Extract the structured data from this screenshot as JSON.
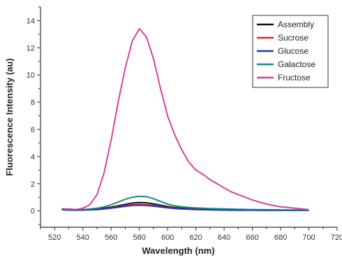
{
  "chart_data": {
    "type": "line",
    "xlabel": "Wavelength (nm)",
    "ylabel": "Fluorescence Intensity (au)",
    "xlim": [
      510,
      720
    ],
    "ylim": [
      -1.2,
      15
    ],
    "x_ticks": [
      520,
      540,
      560,
      580,
      600,
      620,
      640,
      660,
      680,
      700,
      720
    ],
    "y_ticks": [
      0,
      2,
      4,
      6,
      8,
      10,
      12,
      14
    ],
    "grid": false,
    "legend_position": "top-right",
    "series": [
      {
        "name": "Assembly",
        "color": "#111111",
        "x": [
          525,
          530,
          535,
          540,
          545,
          550,
          555,
          560,
          565,
          570,
          575,
          580,
          585,
          590,
          595,
          600,
          605,
          610,
          615,
          620,
          625,
          630,
          640,
          650,
          660,
          670,
          680,
          690,
          700
        ],
        "y": [
          0.15,
          0.12,
          0.1,
          0.1,
          0.12,
          0.15,
          0.2,
          0.28,
          0.38,
          0.48,
          0.58,
          0.62,
          0.6,
          0.52,
          0.42,
          0.32,
          0.25,
          0.2,
          0.16,
          0.14,
          0.12,
          0.1,
          0.08,
          0.08,
          0.07,
          0.06,
          0.06,
          0.05,
          0.05
        ]
      },
      {
        "name": "Sucrose",
        "color": "#e8251f",
        "x": [
          525,
          530,
          535,
          540,
          545,
          550,
          555,
          560,
          565,
          570,
          575,
          580,
          585,
          590,
          595,
          600,
          605,
          610,
          615,
          620,
          625,
          630,
          640,
          650,
          660,
          670,
          680,
          690,
          700
        ],
        "y": [
          0.1,
          0.08,
          0.07,
          0.07,
          0.09,
          0.12,
          0.16,
          0.22,
          0.3,
          0.38,
          0.45,
          0.48,
          0.46,
          0.4,
          0.33,
          0.26,
          0.2,
          0.16,
          0.13,
          0.11,
          0.1,
          0.09,
          0.07,
          0.06,
          0.06,
          0.05,
          0.05,
          0.04,
          0.04
        ]
      },
      {
        "name": "Glucose",
        "color": "#2434b8",
        "x": [
          525,
          530,
          535,
          540,
          545,
          550,
          555,
          560,
          565,
          570,
          575,
          580,
          585,
          590,
          595,
          600,
          605,
          610,
          615,
          620,
          625,
          630,
          640,
          650,
          660,
          670,
          680,
          690,
          700
        ],
        "y": [
          0.08,
          0.06,
          0.05,
          0.06,
          0.08,
          0.1,
          0.14,
          0.2,
          0.27,
          0.34,
          0.4,
          0.42,
          0.4,
          0.35,
          0.29,
          0.23,
          0.18,
          0.14,
          0.12,
          0.1,
          0.09,
          0.08,
          0.06,
          0.05,
          0.05,
          0.04,
          0.04,
          0.04,
          0.03
        ]
      },
      {
        "name": "Galactose",
        "color": "#148a7e",
        "x": [
          525,
          530,
          535,
          540,
          545,
          550,
          555,
          560,
          565,
          570,
          575,
          580,
          585,
          590,
          595,
          600,
          605,
          610,
          615,
          620,
          625,
          630,
          640,
          650,
          660,
          670,
          680,
          690,
          700
        ],
        "y": [
          0.12,
          0.1,
          0.09,
          0.1,
          0.14,
          0.2,
          0.3,
          0.45,
          0.65,
          0.85,
          1.0,
          1.08,
          1.05,
          0.9,
          0.7,
          0.5,
          0.38,
          0.3,
          0.25,
          0.22,
          0.2,
          0.18,
          0.15,
          0.12,
          0.1,
          0.09,
          0.08,
          0.07,
          0.06
        ]
      },
      {
        "name": "Fructose",
        "color": "#d4449c",
        "x": [
          525,
          530,
          535,
          540,
          545,
          550,
          555,
          560,
          565,
          570,
          575,
          580,
          585,
          590,
          595,
          600,
          605,
          610,
          615,
          620,
          625,
          630,
          635,
          640,
          645,
          650,
          655,
          660,
          665,
          670,
          675,
          680,
          685,
          690,
          695,
          700
        ],
        "y": [
          0.1,
          0.15,
          0.1,
          0.2,
          0.45,
          1.2,
          2.8,
          5.2,
          8.0,
          10.5,
          12.5,
          13.4,
          12.8,
          11.2,
          9.0,
          7.0,
          5.6,
          4.5,
          3.6,
          3.0,
          2.7,
          2.3,
          2.0,
          1.7,
          1.4,
          1.2,
          1.0,
          0.8,
          0.65,
          0.5,
          0.4,
          0.3,
          0.25,
          0.2,
          0.15,
          0.1
        ]
      }
    ]
  }
}
